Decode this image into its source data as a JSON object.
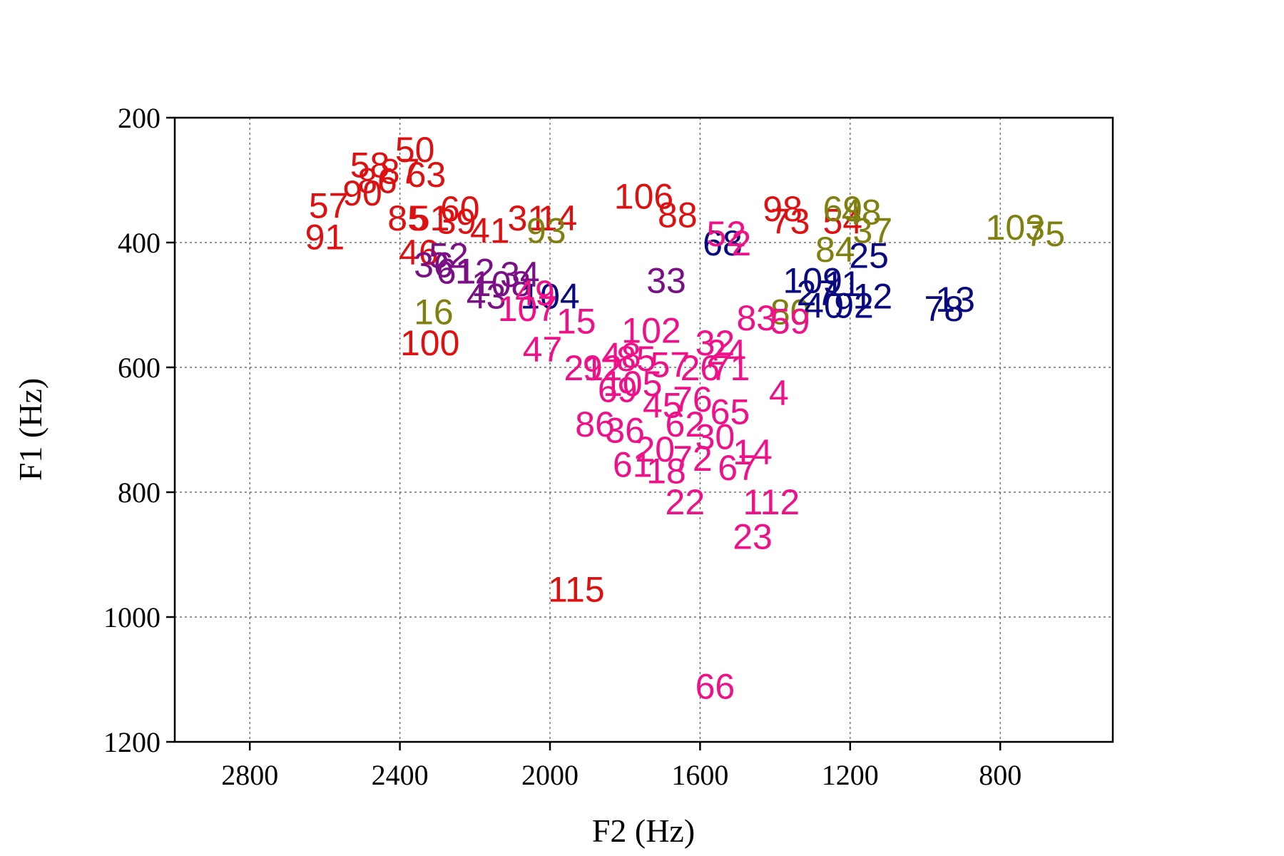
{
  "chart_data": {
    "type": "scatter",
    "xlabel": "F2 (Hz)",
    "ylabel": "F1 (Hz)",
    "xlim": [
      3000,
      500
    ],
    "ylim": [
      200,
      1200
    ],
    "x_reversed": true,
    "y_reversed": true,
    "xticks": [
      2800,
      2400,
      2000,
      1600,
      1200,
      800
    ],
    "xtick_labels": [
      "2800",
      "2400",
      "2000",
      "1600",
      "1200",
      "800"
    ],
    "yticks": [
      200,
      400,
      600,
      800,
      1000,
      1200
    ],
    "ytick_labels": [
      "200",
      "400",
      "600",
      "800",
      "1000",
      "1200"
    ],
    "grid": true,
    "colors": {
      "red": "#dd1111",
      "pink": "#ee1188",
      "purple": "#7a0f86",
      "olive": "#808010",
      "navy": "#0a0a80"
    },
    "points": [
      {
        "label": "50",
        "x": 2360,
        "y": 250,
        "group": "red"
      },
      {
        "label": "58",
        "x": 2480,
        "y": 275,
        "group": "red"
      },
      {
        "label": "87",
        "x": 2400,
        "y": 285,
        "group": "red"
      },
      {
        "label": "63",
        "x": 2330,
        "y": 290,
        "group": "red"
      },
      {
        "label": "86",
        "x": 2460,
        "y": 300,
        "group": "red"
      },
      {
        "label": "90",
        "x": 2500,
        "y": 320,
        "group": "red"
      },
      {
        "label": "57",
        "x": 2590,
        "y": 340,
        "group": "red"
      },
      {
        "label": "60",
        "x": 2240,
        "y": 345,
        "group": "red"
      },
      {
        "label": "85",
        "x": 2380,
        "y": 360,
        "group": "red"
      },
      {
        "label": "51",
        "x": 2320,
        "y": 360,
        "group": "red"
      },
      {
        "label": "39",
        "x": 2250,
        "y": 365,
        "group": "red"
      },
      {
        "label": "31",
        "x": 2060,
        "y": 360,
        "group": "red"
      },
      {
        "label": "14",
        "x": 1980,
        "y": 360,
        "group": "red"
      },
      {
        "label": "41",
        "x": 2160,
        "y": 380,
        "group": "red"
      },
      {
        "label": "91",
        "x": 2600,
        "y": 390,
        "group": "red"
      },
      {
        "label": "46",
        "x": 2350,
        "y": 415,
        "group": "red"
      },
      {
        "label": "100",
        "x": 2320,
        "y": 560,
        "group": "red"
      },
      {
        "label": "106",
        "x": 1750,
        "y": 325,
        "group": "red"
      },
      {
        "label": "88",
        "x": 1660,
        "y": 355,
        "group": "red"
      },
      {
        "label": "98",
        "x": 1380,
        "y": 345,
        "group": "red"
      },
      {
        "label": "73",
        "x": 1360,
        "y": 365,
        "group": "red"
      },
      {
        "label": "54",
        "x": 1220,
        "y": 365,
        "group": "red"
      },
      {
        "label": "115",
        "x": 1930,
        "y": 955,
        "group": "red"
      },
      {
        "label": "93",
        "x": 2010,
        "y": 380,
        "group": "olive"
      },
      {
        "label": "16",
        "x": 2310,
        "y": 510,
        "group": "olive"
      },
      {
        "label": "69",
        "x": 1220,
        "y": 345,
        "group": "olive"
      },
      {
        "label": "48",
        "x": 1170,
        "y": 350,
        "group": "olive"
      },
      {
        "label": "37",
        "x": 1140,
        "y": 380,
        "group": "olive"
      },
      {
        "label": "84",
        "x": 1240,
        "y": 410,
        "group": "olive"
      },
      {
        "label": "80",
        "x": 1360,
        "y": 510,
        "group": "olive"
      },
      {
        "label": "103",
        "x": 760,
        "y": 375,
        "group": "olive"
      },
      {
        "label": "75",
        "x": 680,
        "y": 385,
        "group": "olive"
      },
      {
        "label": "52",
        "x": 2270,
        "y": 420,
        "group": "purple"
      },
      {
        "label": "36",
        "x": 2310,
        "y": 435,
        "group": "purple"
      },
      {
        "label": "61",
        "x": 2250,
        "y": 445,
        "group": "purple"
      },
      {
        "label": "12",
        "x": 2200,
        "y": 445,
        "group": "purple"
      },
      {
        "label": "34",
        "x": 2080,
        "y": 450,
        "group": "purple"
      },
      {
        "label": "108",
        "x": 2130,
        "y": 465,
        "group": "purple"
      },
      {
        "label": "43",
        "x": 2170,
        "y": 485,
        "group": "purple"
      },
      {
        "label": "33",
        "x": 1690,
        "y": 460,
        "group": "purple"
      },
      {
        "label": "104",
        "x": 2000,
        "y": 485,
        "group": "navy"
      },
      {
        "label": "68",
        "x": 1540,
        "y": 400,
        "group": "navy"
      },
      {
        "label": "25",
        "x": 1150,
        "y": 420,
        "group": "navy"
      },
      {
        "label": "109",
        "x": 1300,
        "y": 460,
        "group": "navy"
      },
      {
        "label": "27",
        "x": 1290,
        "y": 480,
        "group": "navy"
      },
      {
        "label": "11",
        "x": 1220,
        "y": 465,
        "group": "navy"
      },
      {
        "label": "40",
        "x": 1270,
        "y": 500,
        "group": "navy"
      },
      {
        "label": "92",
        "x": 1190,
        "y": 500,
        "group": "navy"
      },
      {
        "label": "12",
        "x": 1140,
        "y": 485,
        "group": "navy"
      },
      {
        "label": "13",
        "x": 920,
        "y": 490,
        "group": "navy"
      },
      {
        "label": "78",
        "x": 950,
        "y": 505,
        "group": "navy"
      },
      {
        "label": "15",
        "x": 1930,
        "y": 525,
        "group": "pink"
      },
      {
        "label": "47",
        "x": 2020,
        "y": 570,
        "group": "pink"
      },
      {
        "label": "49",
        "x": 2040,
        "y": 480,
        "group": "pink"
      },
      {
        "label": "107",
        "x": 2060,
        "y": 505,
        "group": "pink"
      },
      {
        "label": "102",
        "x": 1730,
        "y": 540,
        "group": "pink"
      },
      {
        "label": "52",
        "x": 1530,
        "y": 385,
        "group": "pink"
      },
      {
        "label": "2",
        "x": 1490,
        "y": 400,
        "group": "pink"
      },
      {
        "label": "83",
        "x": 1450,
        "y": 520,
        "group": "pink"
      },
      {
        "label": "59",
        "x": 1360,
        "y": 525,
        "group": "pink"
      },
      {
        "label": "32",
        "x": 1560,
        "y": 560,
        "group": "pink"
      },
      {
        "label": "24",
        "x": 1530,
        "y": 575,
        "group": "pink"
      },
      {
        "label": "21",
        "x": 1910,
        "y": 600,
        "group": "pink"
      },
      {
        "label": "92",
        "x": 1860,
        "y": 600,
        "group": "pink"
      },
      {
        "label": "48",
        "x": 1810,
        "y": 580,
        "group": "pink"
      },
      {
        "label": "85",
        "x": 1770,
        "y": 585,
        "group": "pink"
      },
      {
        "label": "57",
        "x": 1680,
        "y": 595,
        "group": "pink"
      },
      {
        "label": "26",
        "x": 1600,
        "y": 600,
        "group": "pink"
      },
      {
        "label": "71",
        "x": 1520,
        "y": 600,
        "group": "pink"
      },
      {
        "label": "105",
        "x": 1780,
        "y": 625,
        "group": "pink"
      },
      {
        "label": "69",
        "x": 1820,
        "y": 635,
        "group": "pink"
      },
      {
        "label": "45",
        "x": 1700,
        "y": 660,
        "group": "pink"
      },
      {
        "label": "76",
        "x": 1620,
        "y": 650,
        "group": "pink"
      },
      {
        "label": "65",
        "x": 1520,
        "y": 670,
        "group": "pink"
      },
      {
        "label": "4",
        "x": 1390,
        "y": 640,
        "group": "pink"
      },
      {
        "label": "86",
        "x": 1880,
        "y": 690,
        "group": "pink"
      },
      {
        "label": "36",
        "x": 1800,
        "y": 700,
        "group": "pink"
      },
      {
        "label": "62",
        "x": 1640,
        "y": 690,
        "group": "pink"
      },
      {
        "label": "30",
        "x": 1560,
        "y": 710,
        "group": "pink"
      },
      {
        "label": "20",
        "x": 1720,
        "y": 730,
        "group": "pink"
      },
      {
        "label": "14",
        "x": 1460,
        "y": 735,
        "group": "pink"
      },
      {
        "label": "72",
        "x": 1620,
        "y": 745,
        "group": "pink"
      },
      {
        "label": "61",
        "x": 1780,
        "y": 755,
        "group": "pink"
      },
      {
        "label": "18",
        "x": 1690,
        "y": 765,
        "group": "pink"
      },
      {
        "label": "67",
        "x": 1500,
        "y": 760,
        "group": "pink"
      },
      {
        "label": "22",
        "x": 1640,
        "y": 815,
        "group": "pink"
      },
      {
        "label": "112",
        "x": 1410,
        "y": 815,
        "group": "pink"
      },
      {
        "label": "23",
        "x": 1460,
        "y": 870,
        "group": "pink"
      },
      {
        "label": "66",
        "x": 1560,
        "y": 1110,
        "group": "pink"
      }
    ]
  }
}
